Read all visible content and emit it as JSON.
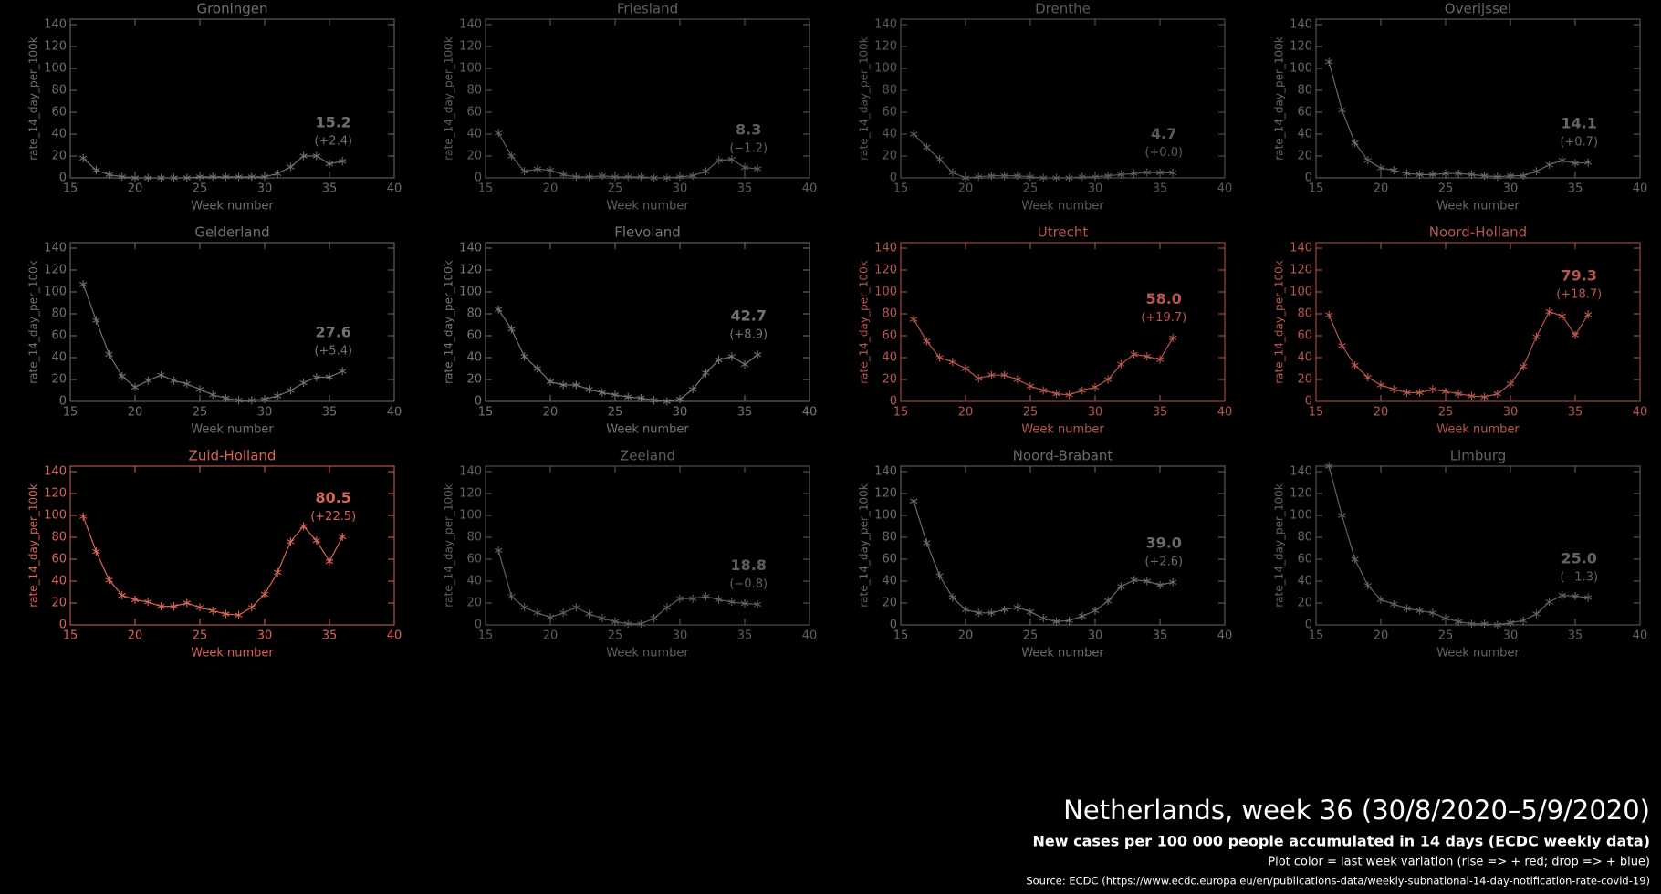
{
  "chart_data": [
    {
      "type": "line",
      "title": "Groningen",
      "x_label": "Week number",
      "y_label": "rate_14_day_per_100k",
      "color": "#6e6e6e",
      "x": [
        16,
        17,
        18,
        19,
        20,
        21,
        22,
        23,
        24,
        25,
        26,
        27,
        28,
        29,
        30,
        31,
        32,
        33,
        34,
        35,
        36
      ],
      "values": [
        18,
        7,
        3,
        1,
        0,
        0,
        0,
        0,
        0,
        1,
        1,
        1,
        1,
        1,
        1,
        4,
        10,
        20,
        20,
        12.8,
        15.2
      ],
      "value_labels": [
        null,
        null,
        null,
        null,
        null,
        null,
        null,
        null,
        null,
        null,
        null,
        null,
        null,
        null,
        null,
        null,
        null,
        null,
        null,
        null,
        "15.2"
      ],
      "change_label": "(+2.4)",
      "xlim": [
        15,
        40
      ],
      "ylim": [
        0,
        145
      ],
      "xticks": [
        15,
        20,
        25,
        30,
        35,
        40
      ],
      "yticks": [
        0,
        20,
        40,
        60,
        80,
        100,
        120,
        140
      ]
    },
    {
      "type": "line",
      "title": "Friesland",
      "x_label": "Week number",
      "y_label": "rate_14_day_per_100k",
      "color": "#5e5e5e",
      "x": [
        16,
        17,
        18,
        19,
        20,
        21,
        22,
        23,
        24,
        25,
        26,
        27,
        28,
        29,
        30,
        31,
        32,
        33,
        34,
        35,
        36
      ],
      "values": [
        41,
        20,
        6,
        8,
        7,
        3,
        1,
        1,
        2,
        1,
        1,
        1,
        0,
        0,
        1,
        2,
        6,
        16,
        17,
        9.5,
        8.3
      ],
      "value_labels": [
        null,
        null,
        null,
        null,
        null,
        null,
        null,
        null,
        null,
        null,
        null,
        null,
        null,
        null,
        null,
        null,
        null,
        null,
        null,
        null,
        "8.3"
      ],
      "change_label": "(−1.2)",
      "xlim": [
        15,
        40
      ],
      "ylim": [
        0,
        145
      ],
      "xticks": [
        15,
        20,
        25,
        30,
        35,
        40
      ],
      "yticks": [
        0,
        20,
        40,
        60,
        80,
        100,
        120,
        140
      ]
    },
    {
      "type": "line",
      "title": "Drenthe",
      "x_label": "Week number",
      "y_label": "rate_14_day_per_100k",
      "color": "#5a5a5a",
      "x": [
        16,
        17,
        18,
        19,
        20,
        21,
        22,
        23,
        24,
        25,
        26,
        27,
        28,
        29,
        30,
        31,
        32,
        33,
        34,
        35,
        36
      ],
      "values": [
        40,
        28,
        17,
        5,
        0,
        1,
        2,
        2,
        2,
        1,
        0,
        0,
        0,
        1,
        1,
        2,
        3,
        4,
        5,
        4.7,
        4.7
      ],
      "value_labels": [
        null,
        null,
        null,
        null,
        null,
        null,
        null,
        null,
        null,
        null,
        null,
        null,
        null,
        null,
        null,
        null,
        null,
        null,
        null,
        null,
        "4.7"
      ],
      "change_label": "(+0.0)",
      "xlim": [
        15,
        40
      ],
      "ylim": [
        0,
        145
      ],
      "xticks": [
        15,
        20,
        25,
        30,
        35,
        40
      ],
      "yticks": [
        0,
        20,
        40,
        60,
        80,
        100,
        120,
        140
      ]
    },
    {
      "type": "line",
      "title": "Overijssel",
      "x_label": "Week number",
      "y_label": "rate_14_day_per_100k",
      "color": "#666666",
      "x": [
        16,
        17,
        18,
        19,
        20,
        21,
        22,
        23,
        24,
        25,
        26,
        27,
        28,
        29,
        30,
        31,
        32,
        33,
        34,
        35,
        36
      ],
      "values": [
        106,
        62,
        32,
        16,
        9,
        7,
        4,
        3,
        3,
        4,
        4,
        3,
        2,
        1,
        2,
        2,
        6,
        12,
        16,
        13.4,
        14.1
      ],
      "value_labels": [
        null,
        null,
        null,
        null,
        null,
        null,
        null,
        null,
        null,
        null,
        null,
        null,
        null,
        null,
        null,
        null,
        null,
        null,
        null,
        null,
        "14.1"
      ],
      "change_label": "(+0.7)",
      "xlim": [
        15,
        40
      ],
      "ylim": [
        0,
        145
      ],
      "xticks": [
        15,
        20,
        25,
        30,
        35,
        40
      ],
      "yticks": [
        0,
        20,
        40,
        60,
        80,
        100,
        120,
        140
      ]
    },
    {
      "type": "line",
      "title": "Gelderland",
      "x_label": "Week number",
      "y_label": "rate_14_day_per_100k",
      "color": "#707070",
      "x": [
        16,
        17,
        18,
        19,
        20,
        21,
        22,
        23,
        24,
        25,
        26,
        27,
        28,
        29,
        30,
        31,
        32,
        33,
        34,
        35,
        36
      ],
      "values": [
        107,
        74,
        43,
        23,
        13,
        19,
        24,
        19,
        16,
        11,
        6,
        3,
        1,
        1,
        2,
        5,
        10,
        17,
        22,
        22.2,
        27.6
      ],
      "value_labels": [
        null,
        null,
        null,
        null,
        null,
        null,
        null,
        null,
        null,
        null,
        null,
        null,
        null,
        null,
        null,
        null,
        null,
        null,
        null,
        null,
        "27.6"
      ],
      "change_label": "(+5.4)",
      "xlim": [
        15,
        40
      ],
      "ylim": [
        0,
        145
      ],
      "xticks": [
        15,
        20,
        25,
        30,
        35,
        40
      ],
      "yticks": [
        0,
        20,
        40,
        60,
        80,
        100,
        120,
        140
      ]
    },
    {
      "type": "line",
      "title": "Flevoland",
      "x_label": "Week number",
      "y_label": "rate_14_day_per_100k",
      "color": "#747474",
      "x": [
        16,
        17,
        18,
        19,
        20,
        21,
        22,
        23,
        24,
        25,
        26,
        27,
        28,
        29,
        30,
        31,
        32,
        33,
        34,
        35,
        36
      ],
      "values": [
        84,
        66,
        41,
        30,
        18,
        15,
        15,
        11,
        8,
        6,
        4,
        3,
        1,
        0,
        2,
        11,
        26,
        38,
        41,
        33.8,
        42.7
      ],
      "value_labels": [
        null,
        null,
        null,
        null,
        null,
        null,
        null,
        null,
        null,
        null,
        null,
        null,
        null,
        null,
        null,
        null,
        null,
        null,
        null,
        null,
        "42.7"
      ],
      "change_label": "(+8.9)",
      "xlim": [
        15,
        40
      ],
      "ylim": [
        0,
        145
      ],
      "xticks": [
        15,
        20,
        25,
        30,
        35,
        40
      ],
      "yticks": [
        0,
        20,
        40,
        60,
        80,
        100,
        120,
        140
      ]
    },
    {
      "type": "line",
      "title": "Utrecht",
      "x_label": "Week number",
      "y_label": "rate_14_day_per_100k",
      "color": "#b8564e",
      "x": [
        16,
        17,
        18,
        19,
        20,
        21,
        22,
        23,
        24,
        25,
        26,
        27,
        28,
        29,
        30,
        31,
        32,
        33,
        34,
        35,
        36
      ],
      "values": [
        75,
        55,
        40,
        36,
        30,
        21,
        24,
        24,
        20,
        14,
        10,
        7,
        6,
        10,
        13,
        20,
        34,
        43,
        41,
        38.3,
        58
      ],
      "value_labels": [
        null,
        null,
        null,
        null,
        null,
        null,
        null,
        null,
        null,
        null,
        null,
        null,
        null,
        null,
        null,
        null,
        null,
        null,
        null,
        null,
        "58.0"
      ],
      "change_label": "(+19.7)",
      "xlim": [
        15,
        40
      ],
      "ylim": [
        0,
        145
      ],
      "xticks": [
        15,
        20,
        25,
        30,
        35,
        40
      ],
      "yticks": [
        0,
        20,
        40,
        60,
        80,
        100,
        120,
        140
      ]
    },
    {
      "type": "line",
      "title": "Noord-Holland",
      "x_label": "Week number",
      "y_label": "rate_14_day_per_100k",
      "color": "#b8564e",
      "x": [
        16,
        17,
        18,
        19,
        20,
        21,
        22,
        23,
        24,
        25,
        26,
        27,
        28,
        29,
        30,
        31,
        32,
        33,
        34,
        35,
        36
      ],
      "values": [
        79,
        51,
        33,
        22,
        15,
        11,
        8,
        8,
        11,
        9,
        7,
        5,
        4,
        7,
        16,
        32,
        59,
        82,
        78,
        60.6,
        79.3
      ],
      "value_labels": [
        null,
        null,
        null,
        null,
        null,
        null,
        null,
        null,
        null,
        null,
        null,
        null,
        null,
        null,
        null,
        null,
        null,
        null,
        null,
        null,
        "79.3"
      ],
      "change_label": "(+18.7)",
      "xlim": [
        15,
        40
      ],
      "ylim": [
        0,
        145
      ],
      "xticks": [
        15,
        20,
        25,
        30,
        35,
        40
      ],
      "yticks": [
        0,
        20,
        40,
        60,
        80,
        100,
        120,
        140
      ]
    },
    {
      "type": "line",
      "title": "Zuid-Holland",
      "x_label": "Week number",
      "y_label": "rate_14_day_per_100k",
      "color": "#d8645a",
      "x": [
        16,
        17,
        18,
        19,
        20,
        21,
        22,
        23,
        24,
        25,
        26,
        27,
        28,
        29,
        30,
        31,
        32,
        33,
        34,
        35,
        36
      ],
      "values": [
        99,
        67,
        41,
        27,
        23,
        21,
        17,
        17,
        20,
        16,
        13,
        10,
        9,
        16,
        28,
        48,
        76,
        90,
        77,
        58,
        80.5
      ],
      "value_labels": [
        null,
        null,
        null,
        null,
        null,
        null,
        null,
        null,
        null,
        null,
        null,
        null,
        null,
        null,
        null,
        null,
        null,
        null,
        null,
        null,
        "80.5"
      ],
      "change_label": "(+22.5)",
      "xlim": [
        15,
        40
      ],
      "ylim": [
        0,
        145
      ],
      "xticks": [
        15,
        20,
        25,
        30,
        35,
        40
      ],
      "yticks": [
        0,
        20,
        40,
        60,
        80,
        100,
        120,
        140
      ]
    },
    {
      "type": "line",
      "title": "Zeeland",
      "x_label": "Week number",
      "y_label": "rate_14_day_per_100k",
      "color": "#5e5e5e",
      "x": [
        16,
        17,
        18,
        19,
        20,
        21,
        22,
        23,
        24,
        25,
        26,
        27,
        28,
        29,
        30,
        31,
        32,
        33,
        34,
        35,
        36
      ],
      "values": [
        68,
        26,
        16,
        11,
        7,
        11,
        16,
        10,
        6,
        3,
        1,
        1,
        6,
        16,
        24,
        24,
        26,
        23,
        21,
        19.6,
        18.8
      ],
      "value_labels": [
        null,
        null,
        null,
        null,
        null,
        null,
        null,
        null,
        null,
        null,
        null,
        null,
        null,
        null,
        null,
        null,
        null,
        null,
        null,
        null,
        "18.8"
      ],
      "change_label": "(−0.8)",
      "xlim": [
        15,
        40
      ],
      "ylim": [
        0,
        145
      ],
      "xticks": [
        15,
        20,
        25,
        30,
        35,
        40
      ],
      "yticks": [
        0,
        20,
        40,
        60,
        80,
        100,
        120,
        140
      ]
    },
    {
      "type": "line",
      "title": "Noord-Brabant",
      "x_label": "Week number",
      "y_label": "rate_14_day_per_100k",
      "color": "#6a6a6a",
      "x": [
        16,
        17,
        18,
        19,
        20,
        21,
        22,
        23,
        24,
        25,
        26,
        27,
        28,
        29,
        30,
        31,
        32,
        33,
        34,
        35,
        36
      ],
      "values": [
        113,
        75,
        45,
        25,
        14,
        11,
        11,
        14,
        16,
        12,
        6,
        3,
        4,
        8,
        13,
        22,
        35,
        41,
        40,
        36.4,
        39
      ],
      "value_labels": [
        null,
        null,
        null,
        null,
        null,
        null,
        null,
        null,
        null,
        null,
        null,
        null,
        null,
        null,
        null,
        null,
        null,
        null,
        null,
        null,
        "39.0"
      ],
      "change_label": "(+2.6)",
      "xlim": [
        15,
        40
      ],
      "ylim": [
        0,
        145
      ],
      "xticks": [
        15,
        20,
        25,
        30,
        35,
        40
      ],
      "yticks": [
        0,
        20,
        40,
        60,
        80,
        100,
        120,
        140
      ]
    },
    {
      "type": "line",
      "title": "Limburg",
      "x_label": "Week number",
      "y_label": "rate_14_day_per_100k",
      "color": "#626262",
      "x": [
        16,
        17,
        18,
        19,
        20,
        21,
        22,
        23,
        24,
        25,
        26,
        27,
        28,
        29,
        30,
        31,
        32,
        33,
        34,
        35,
        36
      ],
      "values": [
        145,
        100,
        60,
        36,
        23,
        19,
        15,
        13,
        11,
        6,
        3,
        1,
        1,
        0,
        2,
        4,
        10,
        21,
        27,
        26.3,
        25
      ],
      "value_labels": [
        null,
        null,
        null,
        null,
        null,
        null,
        null,
        null,
        null,
        null,
        null,
        null,
        null,
        null,
        null,
        null,
        null,
        null,
        null,
        null,
        "25.0"
      ],
      "change_label": "(−1.3)",
      "xlim": [
        15,
        40
      ],
      "ylim": [
        0,
        145
      ],
      "xticks": [
        15,
        20,
        25,
        30,
        35,
        40
      ],
      "yticks": [
        0,
        20,
        40,
        60,
        80,
        100,
        120,
        140
      ]
    }
  ],
  "footer": {
    "title": "Netherlands, week 36 (30/8/2020–5/9/2020)",
    "subtitle": "New cases per 100 000 people accumulated in 14 days (ECDC weekly data)",
    "note": "Plot color = last week variation (rise => + red; drop => + blue)",
    "source": "Source: ECDC (https://www.ecdc.europa.eu/en/publications-data/weekly-subnational-14-day-notification-rate-covid-19)"
  }
}
